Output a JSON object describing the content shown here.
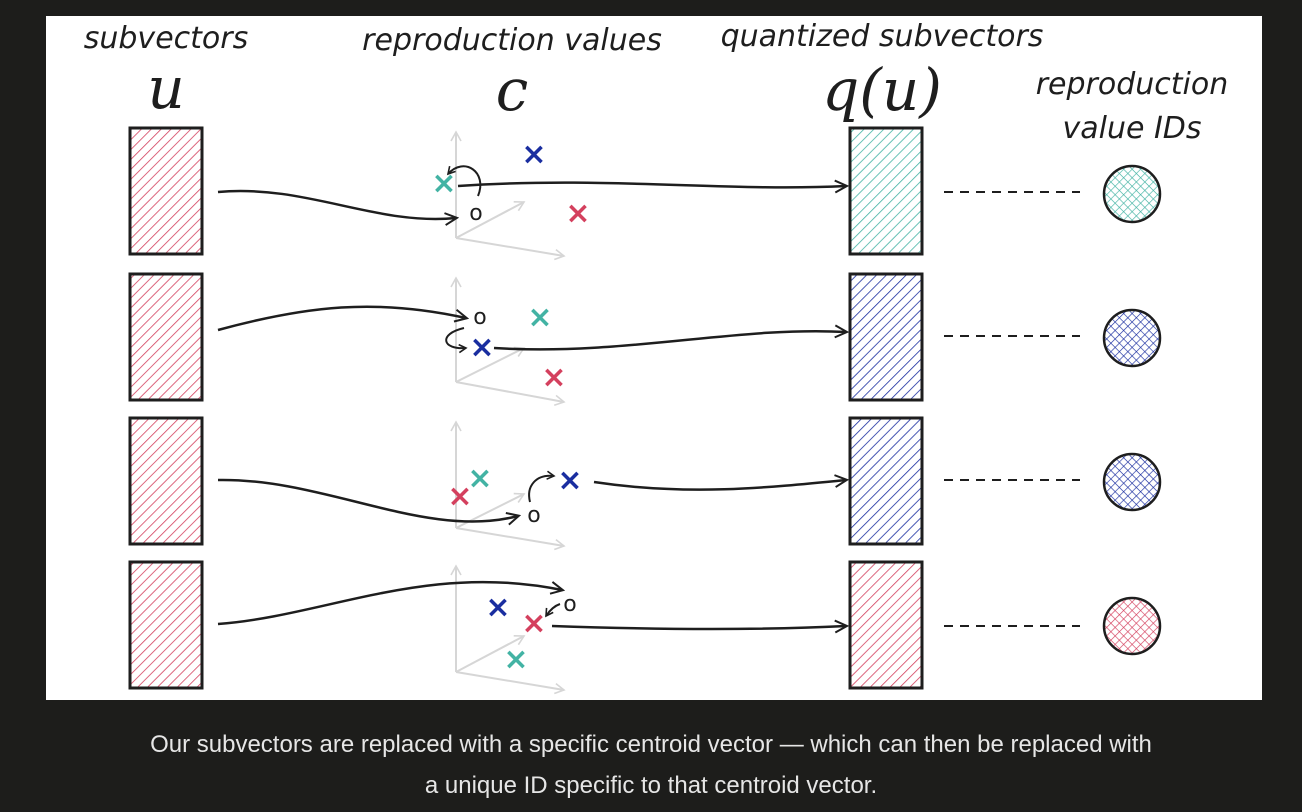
{
  "colors": {
    "page_background": "#1d1d1b",
    "panel_background": "#ffffff",
    "red": "#d4405e",
    "teal": "#43b3a4",
    "blue": "#1a2ea0",
    "ink": "#1e1e1e",
    "axis_gray": "#d6d6d6",
    "caption_text": "#e6e6e6"
  },
  "headers": {
    "subvectors": "subvectors",
    "u_symbol": "u",
    "reproduction_values": "reproduction values",
    "c_symbol": "c",
    "quantized_subvectors": "quantized subvectors",
    "qu_symbol": "q(u)",
    "ids_line1": "reproduction",
    "ids_line2": "value IDs"
  },
  "rows": [
    {
      "input_color": "red",
      "output_color": "teal",
      "id_color": "teal"
    },
    {
      "input_color": "red",
      "output_color": "blue",
      "id_color": "blue"
    },
    {
      "input_color": "red",
      "output_color": "blue",
      "id_color": "blue"
    },
    {
      "input_color": "red",
      "output_color": "red",
      "id_color": "red"
    }
  ],
  "markers": {
    "centroid": "×",
    "point": "o"
  },
  "caption": {
    "line1": "Our subvectors are replaced with a specific centroid vector — which can then be replaced with",
    "line2": "a unique ID specific to that centroid vector."
  }
}
